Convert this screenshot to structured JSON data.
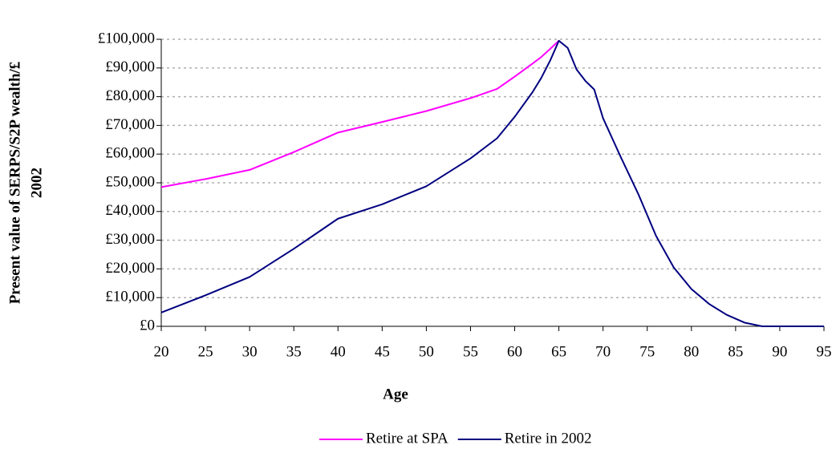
{
  "chart_data": {
    "type": "line",
    "y_label": [
      "Present value of SERPS/S2P wealth/£",
      "2002"
    ],
    "x_label": "Age",
    "x": [
      20,
      25,
      30,
      35,
      40,
      45,
      50,
      55,
      58,
      60,
      62,
      63,
      64,
      65,
      66,
      67,
      68,
      69,
      70,
      72,
      74,
      76,
      78,
      80,
      82,
      84,
      86,
      88,
      90,
      95
    ],
    "series": [
      {
        "name": "Retire at SPA",
        "color": "#ff00ff",
        "values": [
          48500,
          51300,
          54500,
          60700,
          67500,
          71200,
          75000,
          79500,
          82700,
          87000,
          91500,
          93800,
          96600,
          99500,
          null,
          null,
          null,
          null,
          null,
          null,
          null,
          null,
          null,
          null,
          null,
          null,
          null,
          null,
          null,
          null
        ]
      },
      {
        "name": "Retire in 2002",
        "color": "#000080",
        "values": [
          4800,
          10800,
          17200,
          27000,
          37500,
          42500,
          48800,
          58500,
          65500,
          73000,
          81500,
          86500,
          92500,
          99500,
          97000,
          89500,
          85500,
          82500,
          72500,
          59000,
          46000,
          31500,
          20500,
          13000,
          7800,
          4000,
          1300,
          0,
          0,
          0
        ]
      }
    ],
    "xlim": [
      20,
      95
    ],
    "xticks": [
      20,
      25,
      30,
      35,
      40,
      45,
      50,
      55,
      60,
      65,
      70,
      75,
      80,
      85,
      90,
      95
    ],
    "ylim": [
      0,
      100000
    ],
    "yticks": [
      {
        "value": 0,
        "label": "£0"
      },
      {
        "value": 10000,
        "label": "£10,000"
      },
      {
        "value": 20000,
        "label": "£20,000"
      },
      {
        "value": 30000,
        "label": "£30,000"
      },
      {
        "value": 40000,
        "label": "£40,000"
      },
      {
        "value": 50000,
        "label": "£50,000"
      },
      {
        "value": 60000,
        "label": "£60,000"
      },
      {
        "value": 70000,
        "label": "£70,000"
      },
      {
        "value": 80000,
        "label": "£80,000"
      },
      {
        "value": 90000,
        "label": "£90,000"
      },
      {
        "value": 100000,
        "label": "£100,000"
      }
    ],
    "grid": true,
    "legend": "bottom"
  }
}
